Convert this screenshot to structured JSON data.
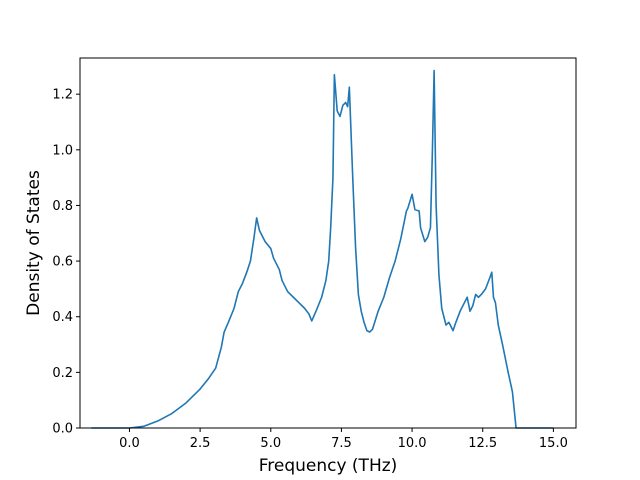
{
  "chart_data": {
    "type": "line",
    "title": "",
    "xlabel": "Frequency (THz)",
    "ylabel": "Density of States",
    "xlim": [
      -1.75,
      15.8
    ],
    "ylim": [
      0.0,
      1.33
    ],
    "xticks": [
      0.0,
      2.5,
      5.0,
      7.5,
      10.0,
      12.5,
      15.0
    ],
    "yticks": [
      0.0,
      0.2,
      0.4,
      0.6,
      0.8,
      1.0,
      1.2
    ],
    "xtick_labels": [
      "0.0",
      "2.5",
      "5.0",
      "7.5",
      "10.0",
      "12.5",
      "15.0"
    ],
    "ytick_labels": [
      "0.0",
      "0.2",
      "0.4",
      "0.6",
      "0.8",
      "1.0",
      "1.2"
    ],
    "grid": false,
    "legend": false,
    "line_color": "#1f77b4",
    "series": [
      {
        "x": [
          -1.35,
          -0.5,
          0.0,
          0.5,
          1.0,
          1.5,
          2.0,
          2.5,
          2.8,
          3.05,
          3.25,
          3.35,
          3.5,
          3.7,
          3.85,
          4.0,
          4.15,
          4.28,
          4.4,
          4.5,
          4.6,
          4.8,
          5.0,
          5.1,
          5.3,
          5.4,
          5.6,
          5.8,
          6.0,
          6.2,
          6.35,
          6.45,
          6.6,
          6.8,
          6.95,
          7.05,
          7.12,
          7.2,
          7.25,
          7.35,
          7.45,
          7.55,
          7.65,
          7.72,
          7.78,
          7.9,
          8.0,
          8.1,
          8.2,
          8.3,
          8.4,
          8.5,
          8.6,
          8.8,
          9.0,
          9.2,
          9.4,
          9.6,
          9.8,
          9.85,
          10.0,
          10.1,
          10.25,
          10.3,
          10.45,
          10.55,
          10.65,
          10.72,
          10.78,
          10.85,
          10.95,
          11.05,
          11.2,
          11.3,
          11.45,
          11.55,
          11.7,
          11.85,
          11.95,
          12.05,
          12.15,
          12.25,
          12.35,
          12.45,
          12.6,
          12.75,
          12.82,
          12.88,
          12.95,
          13.05,
          13.2,
          13.4,
          13.55,
          13.68,
          14.0,
          15.0
        ],
        "y": [
          0.0,
          0.0,
          0.0,
          0.006,
          0.025,
          0.052,
          0.09,
          0.14,
          0.178,
          0.215,
          0.29,
          0.345,
          0.38,
          0.43,
          0.49,
          0.52,
          0.56,
          0.6,
          0.68,
          0.755,
          0.71,
          0.67,
          0.645,
          0.61,
          0.57,
          0.53,
          0.49,
          0.47,
          0.45,
          0.43,
          0.41,
          0.385,
          0.42,
          0.47,
          0.53,
          0.6,
          0.72,
          0.9,
          1.27,
          1.14,
          1.12,
          1.16,
          1.17,
          1.155,
          1.225,
          0.9,
          0.65,
          0.48,
          0.42,
          0.38,
          0.35,
          0.345,
          0.355,
          0.42,
          0.47,
          0.54,
          0.6,
          0.68,
          0.78,
          0.79,
          0.84,
          0.785,
          0.78,
          0.72,
          0.67,
          0.685,
          0.72,
          1.0,
          1.285,
          0.8,
          0.55,
          0.43,
          0.37,
          0.38,
          0.35,
          0.38,
          0.42,
          0.45,
          0.47,
          0.42,
          0.44,
          0.48,
          0.47,
          0.48,
          0.5,
          0.54,
          0.56,
          0.47,
          0.45,
          0.37,
          0.3,
          0.2,
          0.13,
          0.0,
          0.0,
          0.0
        ]
      }
    ]
  }
}
